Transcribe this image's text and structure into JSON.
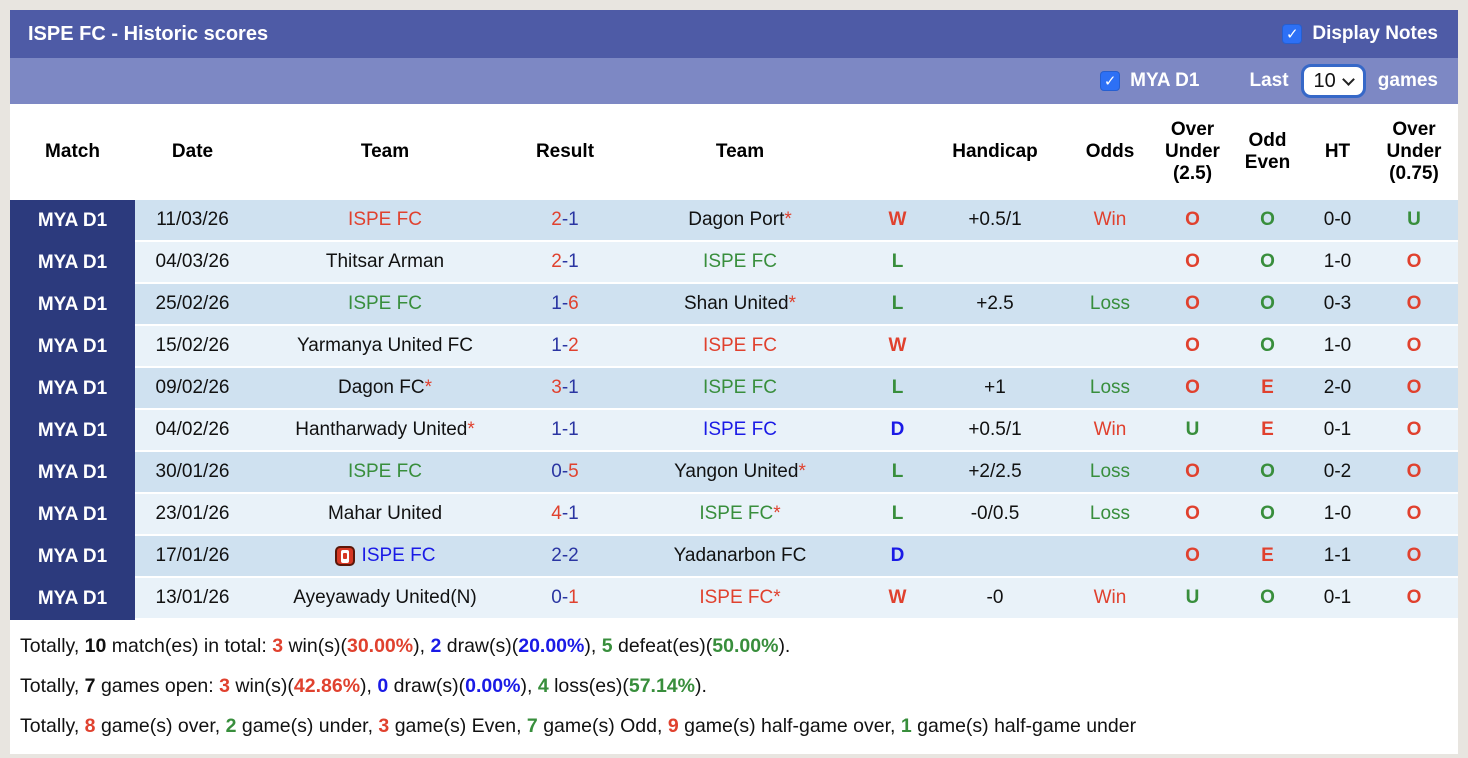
{
  "header": {
    "title": "ISPE FC - Historic scores",
    "display_notes": "Display Notes",
    "display_notes_checked": true
  },
  "subheader": {
    "league": "MYA D1",
    "league_checked": true,
    "last": "Last",
    "games_count": "10",
    "games": "games"
  },
  "icons": {
    "check": "✓"
  },
  "colors": {
    "topbar": "#4e5ba6",
    "subbar": "#7d88c4",
    "league_column": "#2c3a7d",
    "row_odd": "#cfe1f0",
    "row_even": "#e9f2f9",
    "red": "#e0412e",
    "green": "#388e3c",
    "blue": "#1a1ae6",
    "score_blue": "#2a35a2",
    "checkbox_blue": "#2d70f5"
  },
  "table": {
    "columns": {
      "match": "Match",
      "date": "Date",
      "team1": "Team",
      "result": "Result",
      "team2": "Team",
      "wld": "",
      "handicap": "Handicap",
      "odds": "Odds",
      "ou25": "Over\nUnder\n(2.5)",
      "oddeven": "Odd\nEven",
      "ht": "HT",
      "ou075": "Over\nUnder\n(0.75)"
    },
    "rows": [
      {
        "league": "MYA D1",
        "date": "11/03/26",
        "home": {
          "name": "ISPE FC",
          "color": "red",
          "star": false,
          "red_card": false
        },
        "result": {
          "home": "2",
          "home_c": "red",
          "away": "1",
          "away_c": "sblue",
          "dash_c": "sblue"
        },
        "away": {
          "name": "Dagon Port",
          "color": "black",
          "star": true
        },
        "wld": {
          "t": "W",
          "c": "red"
        },
        "handicap": "+0.5/1",
        "odds": {
          "t": "Win",
          "c": "red"
        },
        "ou25": {
          "t": "O",
          "c": "red"
        },
        "oddeven": {
          "t": "O",
          "c": "green"
        },
        "ht": "0-0",
        "ou075": {
          "t": "U",
          "c": "green"
        }
      },
      {
        "league": "MYA D1",
        "date": "04/03/26",
        "home": {
          "name": "Thitsar Arman",
          "color": "black",
          "star": false,
          "red_card": false
        },
        "result": {
          "home": "2",
          "home_c": "red",
          "away": "1",
          "away_c": "sblue",
          "dash_c": "sblue"
        },
        "away": {
          "name": "ISPE FC",
          "color": "green",
          "star": false
        },
        "wld": {
          "t": "L",
          "c": "green"
        },
        "handicap": "",
        "odds": null,
        "ou25": {
          "t": "O",
          "c": "red"
        },
        "oddeven": {
          "t": "O",
          "c": "green"
        },
        "ht": "1-0",
        "ou075": {
          "t": "O",
          "c": "red"
        }
      },
      {
        "league": "MYA D1",
        "date": "25/02/26",
        "home": {
          "name": "ISPE FC",
          "color": "green",
          "star": false,
          "red_card": false
        },
        "result": {
          "home": "1",
          "home_c": "sblue",
          "away": "6",
          "away_c": "red",
          "dash_c": "sblue"
        },
        "away": {
          "name": "Shan United",
          "color": "black",
          "star": true
        },
        "wld": {
          "t": "L",
          "c": "green"
        },
        "handicap": "+2.5",
        "odds": {
          "t": "Loss",
          "c": "green"
        },
        "ou25": {
          "t": "O",
          "c": "red"
        },
        "oddeven": {
          "t": "O",
          "c": "green"
        },
        "ht": "0-3",
        "ou075": {
          "t": "O",
          "c": "red"
        }
      },
      {
        "league": "MYA D1",
        "date": "15/02/26",
        "home": {
          "name": "Yarmanya United FC",
          "color": "black",
          "star": false,
          "red_card": false
        },
        "result": {
          "home": "1",
          "home_c": "sblue",
          "away": "2",
          "away_c": "red",
          "dash_c": "sblue"
        },
        "away": {
          "name": "ISPE FC",
          "color": "red",
          "star": false
        },
        "wld": {
          "t": "W",
          "c": "red"
        },
        "handicap": "",
        "odds": null,
        "ou25": {
          "t": "O",
          "c": "red"
        },
        "oddeven": {
          "t": "O",
          "c": "green"
        },
        "ht": "1-0",
        "ou075": {
          "t": "O",
          "c": "red"
        }
      },
      {
        "league": "MYA D1",
        "date": "09/02/26",
        "home": {
          "name": "Dagon FC",
          "color": "black",
          "star": true,
          "red_card": false
        },
        "result": {
          "home": "3",
          "home_c": "red",
          "away": "1",
          "away_c": "sblue",
          "dash_c": "sblue"
        },
        "away": {
          "name": "ISPE FC",
          "color": "green",
          "star": false
        },
        "wld": {
          "t": "L",
          "c": "green"
        },
        "handicap": "+1",
        "odds": {
          "t": "Loss",
          "c": "green"
        },
        "ou25": {
          "t": "O",
          "c": "red"
        },
        "oddeven": {
          "t": "E",
          "c": "red"
        },
        "ht": "2-0",
        "ou075": {
          "t": "O",
          "c": "red"
        }
      },
      {
        "league": "MYA D1",
        "date": "04/02/26",
        "home": {
          "name": "Hantharwady United",
          "color": "black",
          "star": true,
          "red_card": false
        },
        "result": {
          "home": "1",
          "home_c": "sblue",
          "away": "1",
          "away_c": "sblue",
          "dash_c": "sblue"
        },
        "away": {
          "name": "ISPE FC",
          "color": "blue",
          "star": false
        },
        "wld": {
          "t": "D",
          "c": "blue"
        },
        "handicap": "+0.5/1",
        "odds": {
          "t": "Win",
          "c": "red"
        },
        "ou25": {
          "t": "U",
          "c": "green"
        },
        "oddeven": {
          "t": "E",
          "c": "red"
        },
        "ht": "0-1",
        "ou075": {
          "t": "O",
          "c": "red"
        }
      },
      {
        "league": "MYA D1",
        "date": "30/01/26",
        "home": {
          "name": "ISPE FC",
          "color": "green",
          "star": false,
          "red_card": false
        },
        "result": {
          "home": "0",
          "home_c": "sblue",
          "away": "5",
          "away_c": "red",
          "dash_c": "sblue"
        },
        "away": {
          "name": "Yangon United",
          "color": "black",
          "star": true
        },
        "wld": {
          "t": "L",
          "c": "green"
        },
        "handicap": "+2/2.5",
        "odds": {
          "t": "Loss",
          "c": "green"
        },
        "ou25": {
          "t": "O",
          "c": "red"
        },
        "oddeven": {
          "t": "O",
          "c": "green"
        },
        "ht": "0-2",
        "ou075": {
          "t": "O",
          "c": "red"
        }
      },
      {
        "league": "MYA D1",
        "date": "23/01/26",
        "home": {
          "name": "Mahar United",
          "color": "black",
          "star": false,
          "red_card": false
        },
        "result": {
          "home": "4",
          "home_c": "red",
          "away": "1",
          "away_c": "sblue",
          "dash_c": "sblue"
        },
        "away": {
          "name": "ISPE FC",
          "color": "green",
          "star": true
        },
        "wld": {
          "t": "L",
          "c": "green"
        },
        "handicap": "-0/0.5",
        "odds": {
          "t": "Loss",
          "c": "green"
        },
        "ou25": {
          "t": "O",
          "c": "red"
        },
        "oddeven": {
          "t": "O",
          "c": "green"
        },
        "ht": "1-0",
        "ou075": {
          "t": "O",
          "c": "red"
        }
      },
      {
        "league": "MYA D1",
        "date": "17/01/26",
        "home": {
          "name": "ISPE FC",
          "color": "blue",
          "star": false,
          "red_card": true
        },
        "result": {
          "home": "2",
          "home_c": "sblue",
          "away": "2",
          "away_c": "sblue",
          "dash_c": "sblue"
        },
        "away": {
          "name": "Yadanarbon FC",
          "color": "black",
          "star": false
        },
        "wld": {
          "t": "D",
          "c": "blue"
        },
        "handicap": "",
        "odds": null,
        "ou25": {
          "t": "O",
          "c": "red"
        },
        "oddeven": {
          "t": "E",
          "c": "red"
        },
        "ht": "1-1",
        "ou075": {
          "t": "O",
          "c": "red"
        }
      },
      {
        "league": "MYA D1",
        "date": "13/01/26",
        "home": {
          "name": "Ayeyawady United(N)",
          "color": "black",
          "star": false,
          "red_card": false
        },
        "result": {
          "home": "0",
          "home_c": "sblue",
          "away": "1",
          "away_c": "red",
          "dash_c": "sblue"
        },
        "away": {
          "name": "ISPE FC",
          "color": "red",
          "star": true
        },
        "wld": {
          "t": "W",
          "c": "red"
        },
        "handicap": "-0",
        "odds": {
          "t": "Win",
          "c": "red"
        },
        "ou25": {
          "t": "U",
          "c": "green"
        },
        "oddeven": {
          "t": "O",
          "c": "green"
        },
        "ht": "0-1",
        "ou075": {
          "t": "O",
          "c": "red"
        }
      }
    ]
  },
  "footer": {
    "lines": [
      [
        {
          "t": "Totally, ",
          "c": "black"
        },
        {
          "t": "10",
          "c": "black",
          "b": true
        },
        {
          "t": " match(es) in total: ",
          "c": "black"
        },
        {
          "t": "3",
          "c": "red",
          "b": true
        },
        {
          "t": " win(s)(",
          "c": "black"
        },
        {
          "t": "30.00%",
          "c": "red",
          "b": true
        },
        {
          "t": "), ",
          "c": "black"
        },
        {
          "t": "2",
          "c": "blue",
          "b": true
        },
        {
          "t": " draw(s)(",
          "c": "black"
        },
        {
          "t": "20.00%",
          "c": "blue",
          "b": true
        },
        {
          "t": "), ",
          "c": "black"
        },
        {
          "t": "5",
          "c": "green",
          "b": true
        },
        {
          "t": " defeat(es)(",
          "c": "black"
        },
        {
          "t": "50.00%",
          "c": "green",
          "b": true
        },
        {
          "t": ").",
          "c": "black"
        }
      ],
      [
        {
          "t": "Totally, ",
          "c": "black"
        },
        {
          "t": "7",
          "c": "black",
          "b": true
        },
        {
          "t": " games open: ",
          "c": "black"
        },
        {
          "t": "3",
          "c": "red",
          "b": true
        },
        {
          "t": " win(s)(",
          "c": "black"
        },
        {
          "t": "42.86%",
          "c": "red",
          "b": true
        },
        {
          "t": "), ",
          "c": "black"
        },
        {
          "t": "0",
          "c": "blue",
          "b": true
        },
        {
          "t": " draw(s)(",
          "c": "black"
        },
        {
          "t": "0.00%",
          "c": "blue",
          "b": true
        },
        {
          "t": "), ",
          "c": "black"
        },
        {
          "t": "4",
          "c": "green",
          "b": true
        },
        {
          "t": " loss(es)(",
          "c": "black"
        },
        {
          "t": "57.14%",
          "c": "green",
          "b": true
        },
        {
          "t": ").",
          "c": "black"
        }
      ],
      [
        {
          "t": "Totally, ",
          "c": "black"
        },
        {
          "t": "8",
          "c": "red",
          "b": true
        },
        {
          "t": " game(s) over, ",
          "c": "black"
        },
        {
          "t": "2",
          "c": "green",
          "b": true
        },
        {
          "t": " game(s) under, ",
          "c": "black"
        },
        {
          "t": "3",
          "c": "red",
          "b": true
        },
        {
          "t": " game(s) Even, ",
          "c": "black"
        },
        {
          "t": "7",
          "c": "green",
          "b": true
        },
        {
          "t": " game(s) Odd, ",
          "c": "black"
        },
        {
          "t": "9",
          "c": "red",
          "b": true
        },
        {
          "t": " game(s) half-game over, ",
          "c": "black"
        },
        {
          "t": "1",
          "c": "green",
          "b": true
        },
        {
          "t": " game(s) half-game under",
          "c": "black"
        }
      ]
    ]
  }
}
